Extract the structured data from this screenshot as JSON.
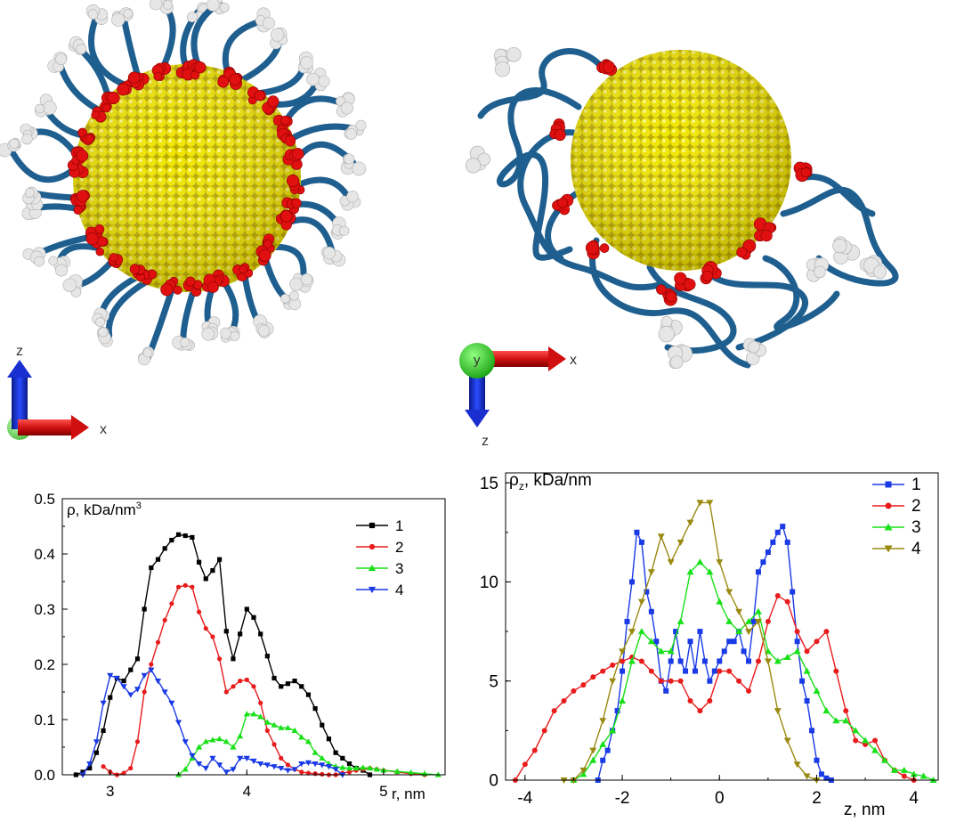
{
  "frames": {
    "left": {
      "axis_labels": {
        "vertical": "z",
        "horizontal": "x"
      }
    },
    "right": {
      "axis_labels": {
        "vertical": "z",
        "horizontal": "x",
        "center": "y"
      }
    }
  },
  "colors": {
    "gold": "#e8e000",
    "red": "#e01010",
    "blue_chain": "#1f5f8f",
    "white_group": "#e6e6e6",
    "s1_left": "#000000",
    "s2_left": "#e81c1c",
    "s3_left": "#19e019",
    "s4_left": "#1a3ae6",
    "s1_right": "#1a3ae6",
    "s2_right": "#e81c1c",
    "s3_right": "#19e019",
    "s4_right": "#9a8a12"
  },
  "chart_data": [
    {
      "type": "line",
      "ylabel_main": "ρ, kDa/nm",
      "ylabel_sup": "3",
      "xlabel": "r, nm",
      "xlim": [
        2.65,
        5.45
      ],
      "ylim": [
        0,
        0.5
      ],
      "xticks": [
        "3",
        "4",
        "5"
      ],
      "yticks": [
        "0.0",
        "0.1",
        "0.2",
        "0.3",
        "0.4",
        "0.5"
      ],
      "legend": "top-right",
      "series": [
        {
          "name": "1",
          "marker": "square",
          "x": [
            2.75,
            2.8,
            2.85,
            2.9,
            2.95,
            3.0,
            3.05,
            3.1,
            3.15,
            3.2,
            3.25,
            3.3,
            3.35,
            3.4,
            3.45,
            3.5,
            3.55,
            3.6,
            3.65,
            3.7,
            3.75,
            3.8,
            3.85,
            3.9,
            3.95,
            4.0,
            4.05,
            4.1,
            4.15,
            4.2,
            4.25,
            4.3,
            4.35,
            4.4,
            4.45,
            4.5,
            4.55,
            4.6,
            4.65,
            4.7,
            4.75,
            4.8,
            4.85,
            4.9
          ],
          "y": [
            0.0,
            0.005,
            0.012,
            0.04,
            0.08,
            0.14,
            0.175,
            0.17,
            0.19,
            0.21,
            0.3,
            0.375,
            0.39,
            0.41,
            0.425,
            0.435,
            0.433,
            0.43,
            0.385,
            0.355,
            0.37,
            0.39,
            0.26,
            0.21,
            0.255,
            0.3,
            0.285,
            0.255,
            0.215,
            0.175,
            0.16,
            0.165,
            0.17,
            0.16,
            0.145,
            0.12,
            0.09,
            0.065,
            0.04,
            0.03,
            0.02,
            0.012,
            0.008,
            0.0
          ]
        },
        {
          "name": "2",
          "marker": "circle",
          "x": [
            2.95,
            3.0,
            3.05,
            3.1,
            3.15,
            3.2,
            3.25,
            3.3,
            3.35,
            3.4,
            3.45,
            3.5,
            3.55,
            3.6,
            3.65,
            3.7,
            3.75,
            3.8,
            3.85,
            3.9,
            3.95,
            4.0,
            4.05,
            4.1,
            4.15,
            4.2,
            4.25,
            4.3,
            4.35,
            4.4,
            4.45,
            4.5,
            4.55,
            4.6,
            4.65,
            4.7,
            4.75,
            4.8,
            4.85,
            4.9,
            4.95,
            5.0,
            5.1,
            5.2,
            5.3
          ],
          "y": [
            0.015,
            0.005,
            0.0,
            0.003,
            0.012,
            0.06,
            0.15,
            0.2,
            0.24,
            0.28,
            0.31,
            0.34,
            0.343,
            0.34,
            0.295,
            0.265,
            0.25,
            0.21,
            0.15,
            0.16,
            0.17,
            0.172,
            0.16,
            0.13,
            0.08,
            0.055,
            0.03,
            0.018,
            0.01,
            0.005,
            0.003,
            0.002,
            0.001,
            0.0,
            0.0,
            0.003,
            0.005,
            0.008,
            0.01,
            0.012,
            0.01,
            0.008,
            0.005,
            0.002,
            0.0
          ]
        },
        {
          "name": "3",
          "marker": "triangle-up",
          "x": [
            3.5,
            3.55,
            3.6,
            3.65,
            3.7,
            3.75,
            3.8,
            3.85,
            3.9,
            3.95,
            4.0,
            4.05,
            4.1,
            4.15,
            4.2,
            4.25,
            4.3,
            4.35,
            4.4,
            4.45,
            4.5,
            4.55,
            4.6,
            4.65,
            4.7,
            4.75,
            4.8,
            4.85,
            4.9,
            4.95,
            5.0,
            5.1,
            5.2,
            5.3,
            5.4
          ],
          "y": [
            0.0,
            0.01,
            0.03,
            0.05,
            0.06,
            0.063,
            0.065,
            0.06,
            0.05,
            0.07,
            0.11,
            0.11,
            0.105,
            0.095,
            0.09,
            0.085,
            0.085,
            0.08,
            0.068,
            0.06,
            0.04,
            0.03,
            0.02,
            0.015,
            0.013,
            0.012,
            0.012,
            0.013,
            0.012,
            0.01,
            0.008,
            0.006,
            0.004,
            0.002,
            0.0
          ]
        },
        {
          "name": "4",
          "marker": "triangle-down",
          "x": [
            2.8,
            2.85,
            2.9,
            2.95,
            3.0,
            3.05,
            3.1,
            3.15,
            3.2,
            3.25,
            3.3,
            3.35,
            3.4,
            3.45,
            3.5,
            3.55,
            3.6,
            3.65,
            3.7,
            3.75,
            3.8,
            3.85,
            3.9,
            3.95,
            4.0,
            4.05,
            4.1,
            4.15,
            4.2,
            4.25,
            4.3,
            4.35,
            4.4,
            4.45,
            4.5,
            4.55,
            4.6,
            4.65,
            4.7
          ],
          "y": [
            0.0,
            0.02,
            0.06,
            0.13,
            0.18,
            0.175,
            0.16,
            0.145,
            0.155,
            0.18,
            0.19,
            0.17,
            0.15,
            0.13,
            0.095,
            0.06,
            0.035,
            0.02,
            0.012,
            0.03,
            0.018,
            0.005,
            0.01,
            0.03,
            0.03,
            0.025,
            0.02,
            0.018,
            0.015,
            0.012,
            0.008,
            0.01,
            0.02,
            0.022,
            0.02,
            0.018,
            0.015,
            0.01,
            0.0
          ]
        }
      ]
    },
    {
      "type": "line",
      "ylabel_main": "ρ",
      "ylabel_sub": "z",
      "ylabel_rest": ", kDa/nm",
      "xlabel": "z, nm",
      "xlim": [
        -4.4,
        4.5
      ],
      "ylim": [
        0,
        15.5
      ],
      "xticks": [
        "-4",
        "-2",
        "0",
        "2",
        "4"
      ],
      "yticks": [
        "0",
        "5",
        "10",
        "15"
      ],
      "legend": "top-right",
      "series": [
        {
          "name": "1",
          "marker": "square",
          "x": [
            -2.5,
            -2.4,
            -2.3,
            -2.2,
            -2.1,
            -2.0,
            -1.9,
            -1.8,
            -1.7,
            -1.6,
            -1.5,
            -1.4,
            -1.3,
            -1.2,
            -1.1,
            -1.0,
            -0.9,
            -0.8,
            -0.7,
            -0.6,
            -0.5,
            -0.4,
            -0.3,
            -0.2,
            -0.1,
            0.0,
            0.1,
            0.2,
            0.3,
            0.4,
            0.5,
            0.6,
            0.7,
            0.8,
            0.9,
            1.0,
            1.1,
            1.2,
            1.3,
            1.4,
            1.5,
            1.6,
            1.7,
            1.8,
            1.9,
            2.0,
            2.1,
            2.2,
            2.3
          ],
          "y": [
            0.0,
            1.0,
            1.5,
            2.5,
            3.5,
            5.5,
            8.0,
            10.0,
            12.5,
            12.0,
            9.5,
            8.5,
            7.0,
            5.0,
            4.5,
            6.0,
            7.5,
            6.0,
            5.5,
            7.0,
            5.5,
            7.5,
            6.0,
            5.0,
            5.5,
            6.0,
            6.5,
            7.0,
            7.0,
            7.5,
            6.5,
            6.0,
            8.0,
            10.5,
            11.0,
            11.5,
            12.0,
            12.5,
            12.8,
            12.0,
            9.5,
            7.0,
            5.0,
            4.0,
            2.5,
            1.0,
            0.3,
            0.1,
            0.0
          ]
        },
        {
          "name": "2",
          "marker": "circle",
          "x": [
            -4.2,
            -4.0,
            -3.8,
            -3.6,
            -3.4,
            -3.2,
            -3.0,
            -2.8,
            -2.6,
            -2.4,
            -2.2,
            -2.0,
            -1.8,
            -1.6,
            -1.4,
            -1.2,
            -1.0,
            -0.8,
            -0.6,
            -0.4,
            -0.2,
            0.0,
            0.2,
            0.4,
            0.6,
            0.8,
            1.0,
            1.2,
            1.4,
            1.6,
            1.8,
            2.0,
            2.2,
            2.4,
            2.6,
            2.8,
            3.0,
            3.2,
            3.4,
            3.6,
            3.8,
            4.0
          ],
          "y": [
            0.0,
            0.8,
            1.5,
            2.5,
            3.5,
            4.0,
            4.5,
            4.8,
            5.2,
            5.5,
            5.8,
            6.0,
            6.2,
            6.0,
            5.5,
            5.0,
            5.0,
            5.0,
            4.0,
            3.5,
            4.0,
            5.5,
            5.5,
            5.0,
            4.5,
            6.0,
            8.0,
            9.3,
            9.0,
            7.5,
            6.5,
            7.0,
            7.5,
            5.5,
            3.5,
            2.0,
            1.8,
            2.0,
            1.0,
            0.5,
            0.2,
            0.0
          ]
        },
        {
          "name": "3",
          "marker": "triangle-up",
          "x": [
            -3.0,
            -2.8,
            -2.6,
            -2.4,
            -2.2,
            -2.0,
            -1.8,
            -1.6,
            -1.4,
            -1.2,
            -1.0,
            -0.8,
            -0.6,
            -0.4,
            -0.2,
            0.0,
            0.2,
            0.4,
            0.6,
            0.8,
            1.0,
            1.2,
            1.4,
            1.6,
            1.8,
            2.0,
            2.2,
            2.4,
            2.6,
            2.8,
            3.0,
            3.2,
            3.4,
            3.6,
            3.8,
            4.0,
            4.2,
            4.4
          ],
          "y": [
            0.0,
            0.3,
            1.0,
            1.8,
            2.5,
            4.0,
            6.0,
            7.5,
            7.0,
            6.5,
            6.5,
            8.0,
            10.5,
            11.0,
            10.5,
            9.0,
            8.0,
            7.5,
            8.0,
            8.5,
            6.5,
            6.0,
            6.2,
            6.5,
            5.5,
            4.5,
            3.5,
            3.0,
            3.0,
            2.5,
            2.0,
            1.5,
            1.0,
            0.5,
            0.5,
            0.3,
            0.2,
            0.0
          ]
        },
        {
          "name": "4",
          "marker": "triangle-down",
          "x": [
            -3.2,
            -3.0,
            -2.8,
            -2.6,
            -2.4,
            -2.2,
            -2.0,
            -1.8,
            -1.6,
            -1.4,
            -1.2,
            -1.0,
            -0.8,
            -0.6,
            -0.4,
            -0.2,
            0.0,
            0.2,
            0.4,
            0.6,
            0.8,
            1.0,
            1.2,
            1.4,
            1.6,
            1.8,
            2.0
          ],
          "y": [
            0.0,
            0.0,
            0.5,
            1.5,
            3.0,
            5.0,
            6.5,
            7.5,
            9.0,
            10.5,
            12.3,
            11.0,
            12.0,
            13.0,
            14.0,
            14.0,
            11.0,
            9.5,
            8.5,
            7.5,
            8.0,
            6.0,
            3.5,
            2.0,
            0.8,
            0.2,
            0.0
          ]
        }
      ]
    }
  ]
}
